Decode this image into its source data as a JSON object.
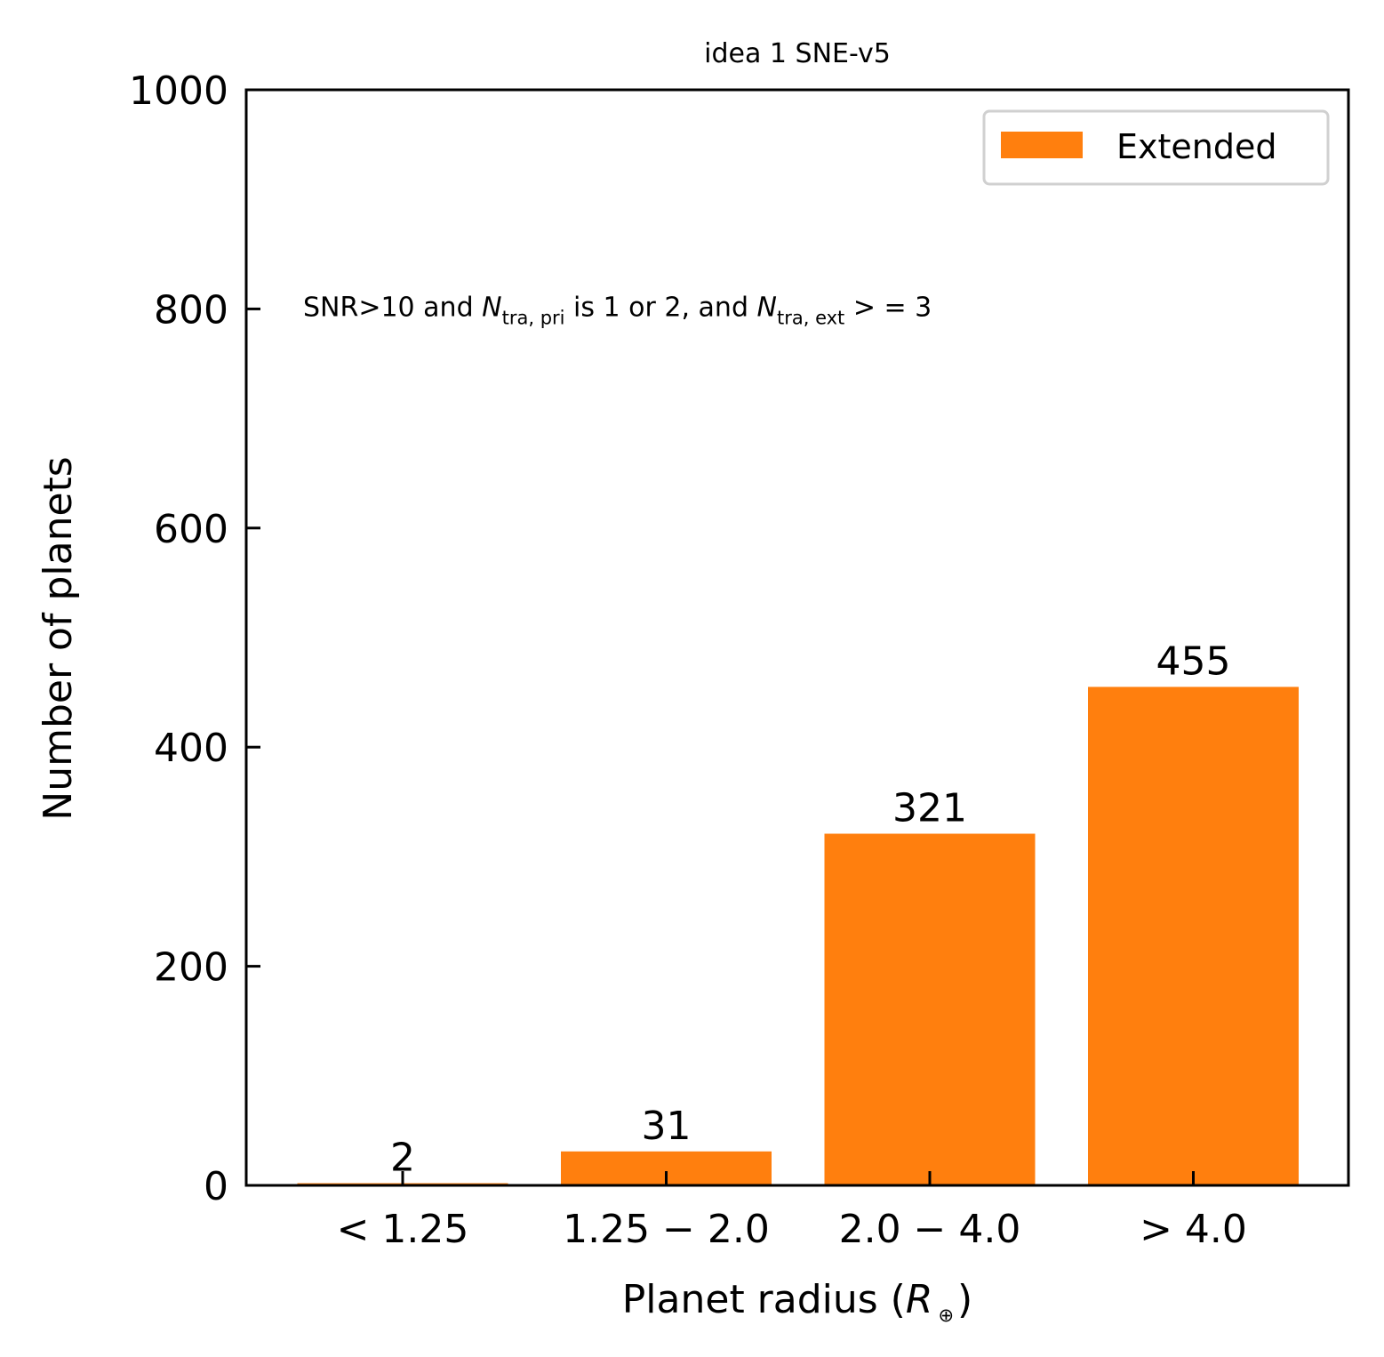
{
  "chart_data": {
    "type": "bar",
    "title": "idea 1 SNE-v5",
    "xlabel": "Planet radius (",
    "xlabel_symbol": "R",
    "xlabel_subscript": "⊕",
    "xlabel_close": ")",
    "ylabel": "Number of planets",
    "categories": [
      "< 1.25",
      "1.25 − 2.0",
      "2.0 − 4.0",
      "> 4.0"
    ],
    "series": [
      {
        "name": "Extended",
        "color": "#ff7f0e",
        "values": [
          2,
          31,
          321,
          455
        ]
      }
    ],
    "ylim": [
      0,
      1000
    ],
    "yticks": [
      0,
      200,
      400,
      600,
      800,
      1000
    ],
    "grid": false,
    "legend": "top-right",
    "annotation": {
      "anchor_y": 800,
      "parts": [
        {
          "text": "SNR>10 and "
        },
        {
          "text": "N",
          "italic": true
        },
        {
          "text": "tra, pri",
          "sub": true
        },
        {
          "text": " is 1 or 2, and "
        },
        {
          "text": "N",
          "italic": true
        },
        {
          "text": "tra, ext",
          "sub": true
        },
        {
          "text": " > = 3"
        }
      ]
    }
  }
}
